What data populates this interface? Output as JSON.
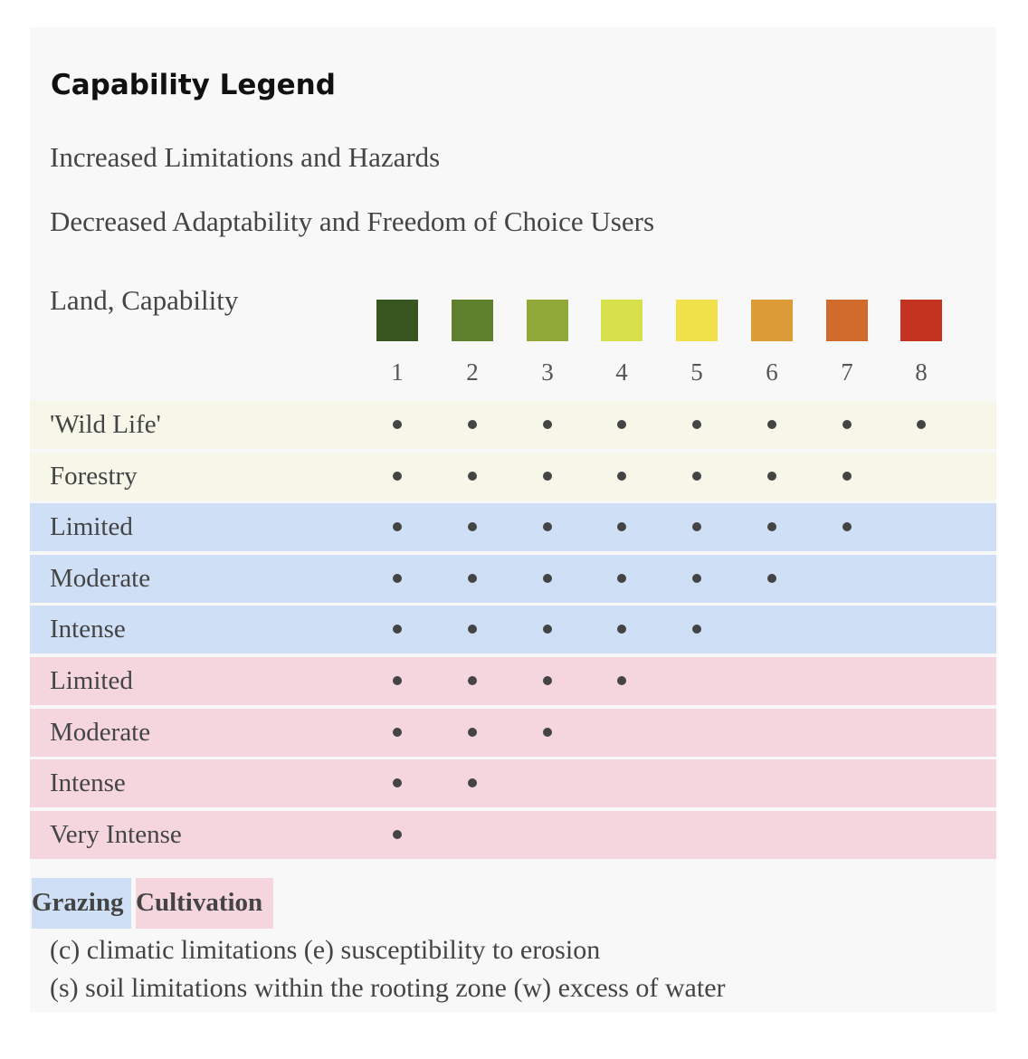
{
  "legend": {
    "title": "Capability Legend",
    "subtitle_1": "Increased Limitations and Hazards",
    "subtitle_2": "Decreased Adaptability and Freedom of Choice Users",
    "land_capability_label": "Land, Capability",
    "classes": [
      {
        "number": "1",
        "color": "#38561f"
      },
      {
        "number": "2",
        "color": "#5e7f2b"
      },
      {
        "number": "3",
        "color": "#90a938"
      },
      {
        "number": "4",
        "color": "#d5e04a"
      },
      {
        "number": "5",
        "color": "#f0e04a"
      },
      {
        "number": "6",
        "color": "#dc9b37"
      },
      {
        "number": "7",
        "color": "#d16a2d"
      },
      {
        "number": "8",
        "color": "#c4331f"
      }
    ],
    "rows": [
      {
        "label": "'Wild Life'",
        "group": "wildlife",
        "max_class": 8
      },
      {
        "label": "Forestry",
        "group": "wildlife",
        "max_class": 7
      },
      {
        "label": "Limited",
        "group": "grazing",
        "max_class": 7
      },
      {
        "label": "Moderate",
        "group": "grazing",
        "max_class": 6
      },
      {
        "label": "Intense",
        "group": "grazing",
        "max_class": 5
      },
      {
        "label": "Limited",
        "group": "cultivation",
        "max_class": 4
      },
      {
        "label": "Moderate",
        "group": "cultivation",
        "max_class": 3
      },
      {
        "label": "Intense",
        "group": "cultivation",
        "max_class": 2
      },
      {
        "label": "Very Intense",
        "group": "cultivation",
        "max_class": 1
      }
    ],
    "group_colors": {
      "wildlife": "#f6f7e8",
      "grazing": "#cfe0f6",
      "cultivation": "#f5d6df"
    },
    "tags": {
      "grazing": "Grazing",
      "cultivation": "Cultivation"
    },
    "notes": [
      "(c) climatic limitations (e) susceptibility to erosion",
      "(s) soil limitations within the rooting zone (w) excess of water"
    ]
  }
}
